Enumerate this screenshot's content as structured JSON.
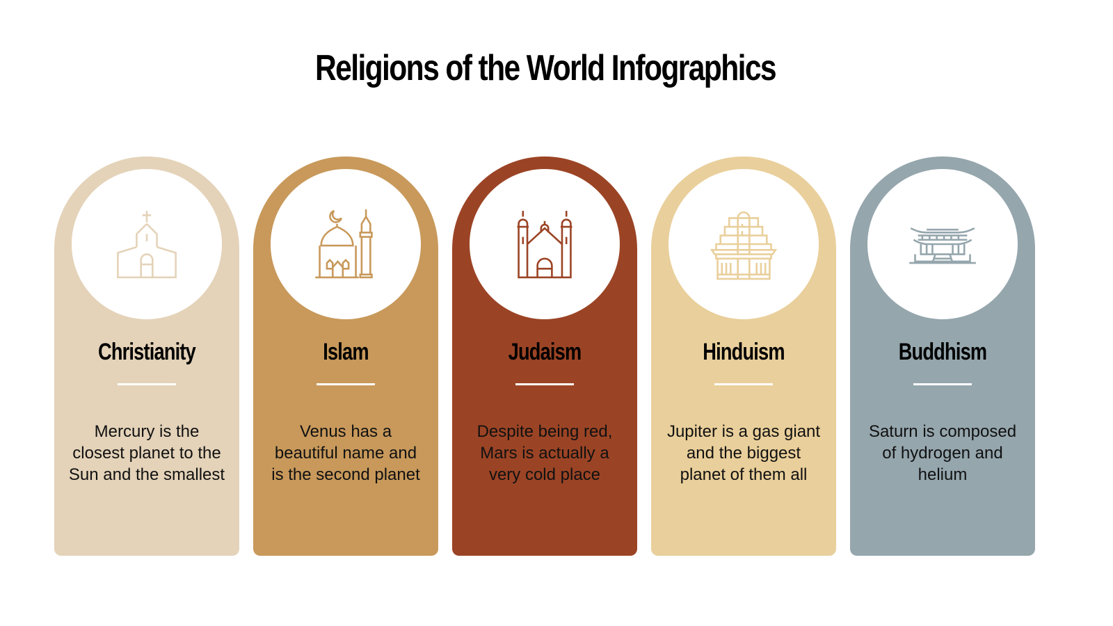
{
  "title": "Religions of the World Infographics",
  "cards": [
    {
      "name": "Christianity",
      "description": "Mercury is the closest planet to the Sun and the smallest",
      "color": "#e4d3b9",
      "icon": "church-icon"
    },
    {
      "name": "Islam",
      "description": "Venus has a beautiful name and is the second planet",
      "color": "#c8995b",
      "icon": "mosque-icon"
    },
    {
      "name": "Judaism",
      "description": "Despite being red, Mars is actually a very cold place",
      "color": "#9b4425",
      "icon": "synagogue-icon"
    },
    {
      "name": "Hinduism",
      "description": "Jupiter is a gas giant and the biggest planet of them all",
      "color": "#e9cf9b",
      "icon": "hindu-temple-icon"
    },
    {
      "name": "Buddhism",
      "description": "Saturn is composed of hydrogen and helium",
      "color": "#95a6ad",
      "icon": "pagoda-temple-icon"
    }
  ]
}
